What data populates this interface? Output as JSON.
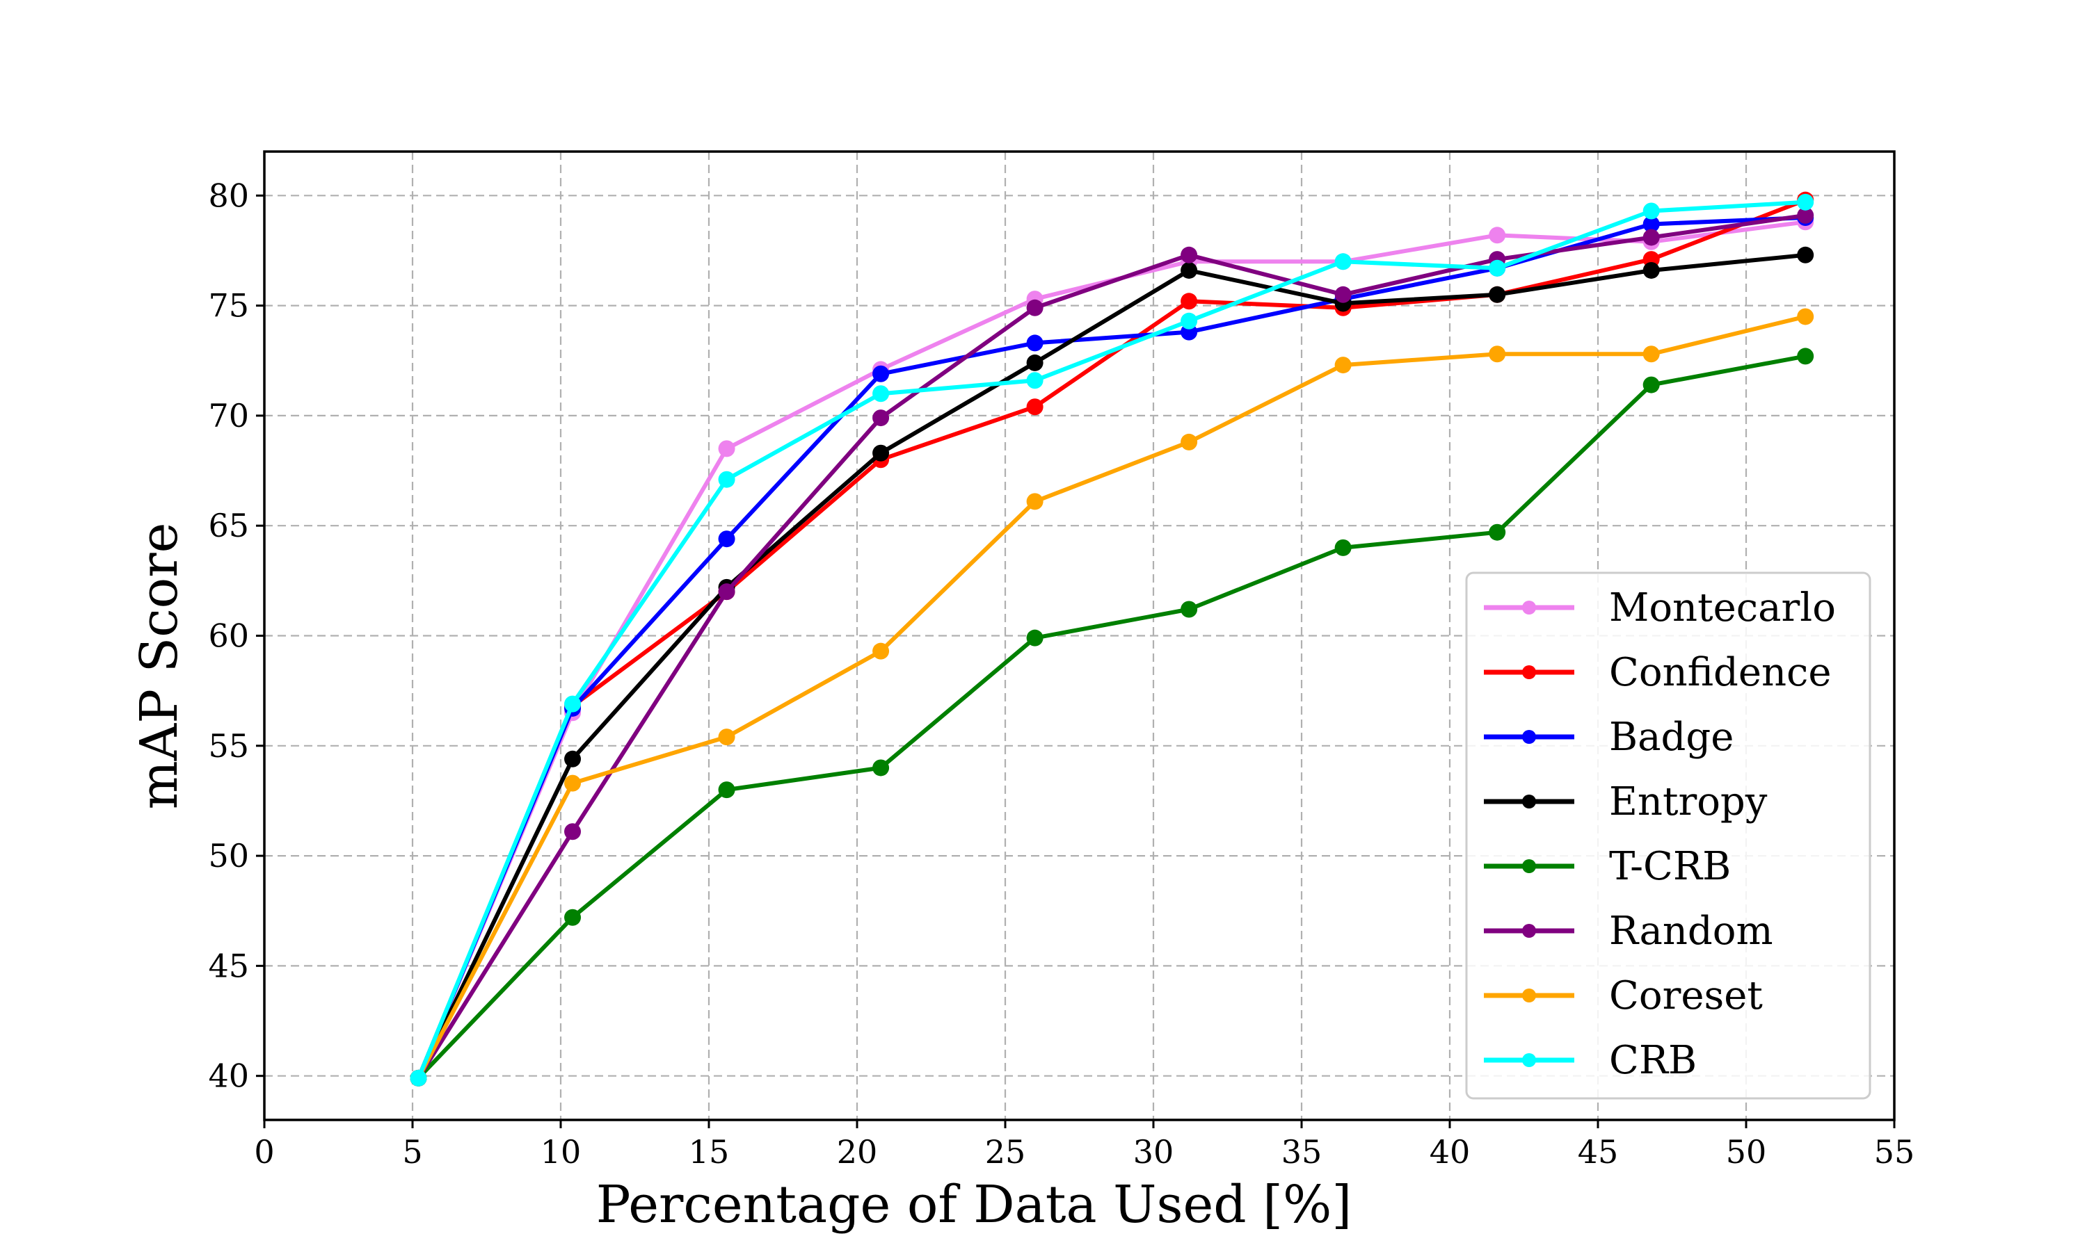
{
  "chart_data": {
    "type": "line",
    "title": "",
    "xlabel": "Percentage of Data Used [%]",
    "ylabel": "mAP Score",
    "xlim": [
      0,
      55
    ],
    "ylim": [
      38,
      82
    ],
    "xticks": [
      0,
      5,
      10,
      15,
      20,
      25,
      30,
      35,
      40,
      45,
      50,
      55
    ],
    "yticks": [
      40,
      45,
      50,
      55,
      60,
      65,
      70,
      75,
      80
    ],
    "grid": true,
    "legend_position": "lower-right",
    "x": [
      5.2,
      10.4,
      15.6,
      20.8,
      26.0,
      31.2,
      36.4,
      41.6,
      46.8,
      52.0
    ],
    "series": [
      {
        "name": "Montecarlo",
        "color": "#ee82ee",
        "values": [
          39.9,
          56.5,
          68.5,
          72.1,
          75.3,
          77.0,
          77.0,
          78.2,
          77.9,
          78.8
        ]
      },
      {
        "name": "Confidence",
        "color": "#ff0000",
        "values": [
          39.9,
          56.8,
          62.0,
          68.0,
          70.4,
          75.2,
          74.9,
          75.5,
          77.1,
          79.8
        ]
      },
      {
        "name": "Badge",
        "color": "#0000ff",
        "values": [
          39.9,
          56.7,
          64.4,
          71.9,
          73.3,
          73.8,
          75.3,
          76.7,
          78.7,
          79.0
        ]
      },
      {
        "name": "Entropy",
        "color": "#000000",
        "values": [
          39.9,
          54.4,
          62.2,
          68.3,
          72.4,
          76.6,
          75.1,
          75.5,
          76.6,
          77.3
        ]
      },
      {
        "name": "T-CRB",
        "color": "#008000",
        "values": [
          39.9,
          47.2,
          53.0,
          54.0,
          59.9,
          61.2,
          64.0,
          64.7,
          71.4,
          72.7
        ]
      },
      {
        "name": "Random",
        "color": "#800080",
        "values": [
          39.9,
          51.1,
          62.0,
          69.9,
          74.9,
          77.3,
          75.5,
          77.1,
          78.1,
          79.1
        ]
      },
      {
        "name": "Coreset",
        "color": "#ffa500",
        "values": [
          39.9,
          53.3,
          55.4,
          59.3,
          66.1,
          68.8,
          72.3,
          72.8,
          72.8,
          74.5
        ]
      },
      {
        "name": "CRB",
        "color": "#00ffff",
        "values": [
          39.9,
          56.9,
          67.1,
          71.0,
          71.6,
          74.3,
          77.0,
          76.7,
          79.3,
          79.7
        ]
      }
    ]
  }
}
